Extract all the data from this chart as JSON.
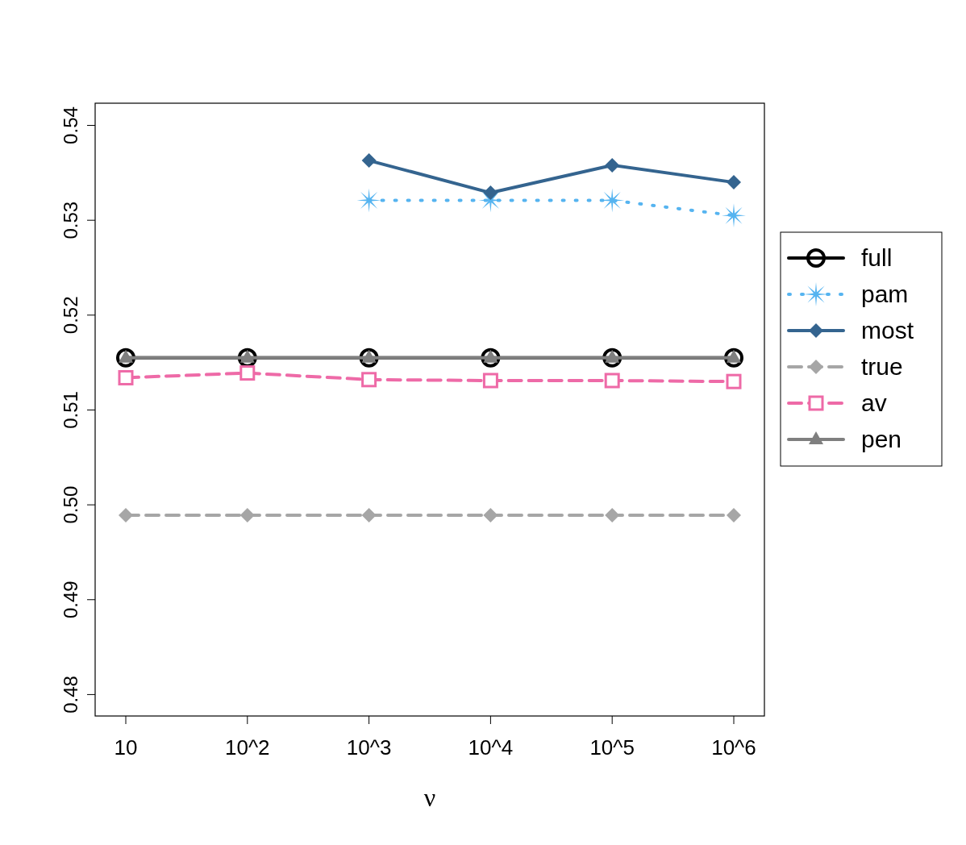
{
  "chart_data": {
    "type": "line",
    "xlabel": "ν",
    "categories": [
      "10",
      "10^2",
      "10^3",
      "10^4",
      "10^5",
      "10^6"
    ],
    "ylim": [
      0.47774,
      0.54234
    ],
    "yticks": [
      0.48,
      0.49,
      {
        "value": 0.5,
        "label": "0.50"
      },
      0.51,
      0.52,
      0.53,
      0.54
    ],
    "grid": false,
    "legend": "right",
    "series": [
      {
        "name": "full",
        "color": "#000000",
        "marker": "circle",
        "line_style": "solid",
        "values": [
          0.5155,
          0.5155,
          0.5155,
          0.5155,
          0.5155,
          0.5155
        ]
      },
      {
        "name": "pam",
        "color": "#56b4f0",
        "marker": "star",
        "line_style": "dotted",
        "values": [
          null,
          null,
          0.5321,
          0.5321,
          0.5321,
          0.5305
        ]
      },
      {
        "name": "most",
        "color": "#34648f",
        "marker": "diamond",
        "line_style": "solid",
        "values": [
          null,
          null,
          0.5363,
          0.5329,
          0.5358,
          0.534
        ]
      },
      {
        "name": "true",
        "color": "#a6a6a6",
        "marker": "diamond",
        "line_style": "dashed",
        "values": [
          0.4989,
          0.4989,
          0.4989,
          0.4989,
          0.4989,
          0.4989
        ]
      },
      {
        "name": "av",
        "color": "#ee6aa7",
        "marker": "square",
        "line_style": "dashed",
        "values": [
          0.5134,
          0.5139,
          0.5132,
          0.5131,
          0.5131,
          0.513
        ]
      },
      {
        "name": "pen",
        "color": "#7f7f7f",
        "marker": "triangle",
        "line_style": "solid",
        "values": [
          0.5155,
          0.5155,
          0.5155,
          0.5155,
          0.5155,
          0.5155
        ]
      }
    ]
  }
}
